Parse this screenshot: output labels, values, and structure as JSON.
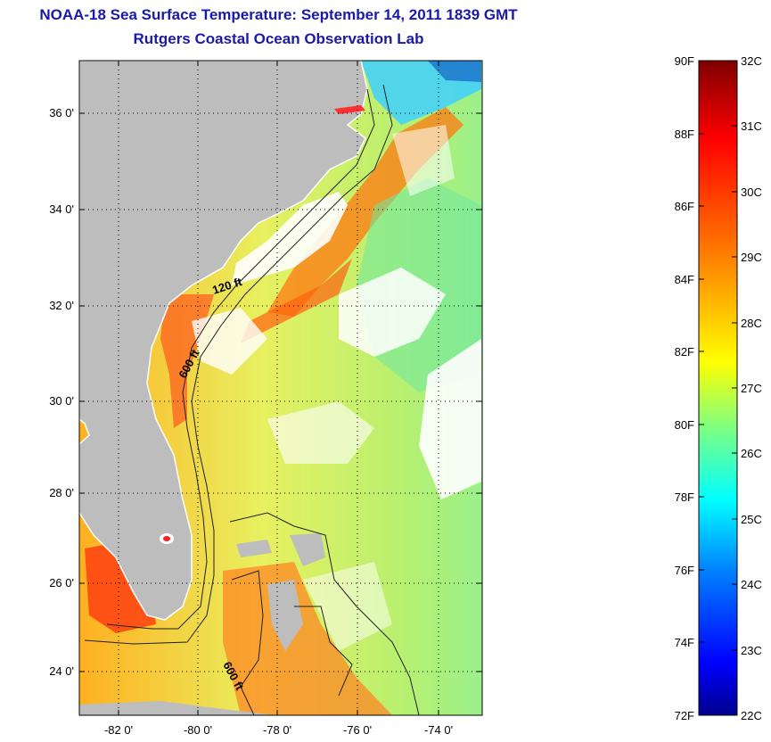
{
  "title": "NOAA-18 Sea Surface Temperature:  September 14, 2011 1839 GMT",
  "subtitle": "Rutgers Coastal Ocean Observation Lab",
  "map": {
    "lat_ticks": [
      "36 0'",
      "34 0'",
      "32 0'",
      "30 0'",
      "28 0'",
      "26 0'",
      "24 0'"
    ],
    "lon_ticks": [
      "-82 0'",
      "-80 0'",
      "-78 0'",
      "-76 0'",
      "-74 0'"
    ],
    "contour_labels": [
      "120 ft",
      "600 ft",
      "600 ft"
    ],
    "land_color": "#bdbdbd"
  },
  "colorbar": {
    "f_labels": [
      "90F",
      "88F",
      "86F",
      "84F",
      "82F",
      "80F",
      "78F",
      "76F",
      "74F",
      "72F"
    ],
    "c_labels": [
      "32C",
      "31C",
      "30C",
      "29C",
      "28C",
      "27C",
      "26C",
      "25C",
      "24C",
      "23C",
      "22C"
    ],
    "colors": [
      "#7f0000",
      "#ff0000",
      "#ff8000",
      "#ffff00",
      "#80ff80",
      "#00ffff",
      "#0080ff",
      "#0000ff",
      "#00008f"
    ]
  }
}
